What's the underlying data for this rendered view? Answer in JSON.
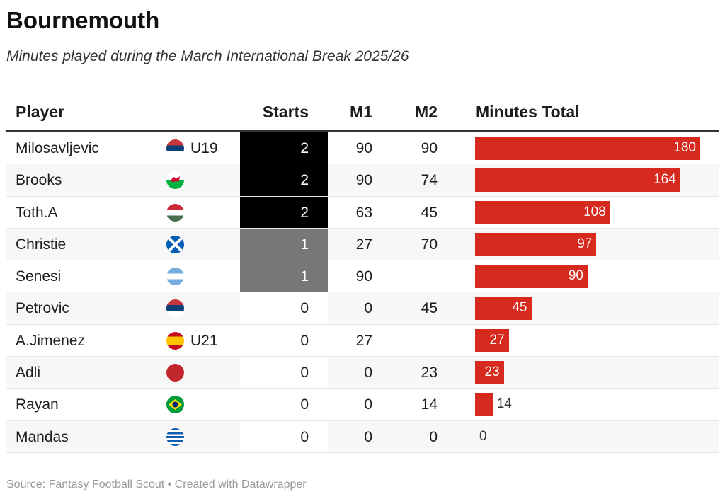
{
  "title": "Bournemouth",
  "subtitle": "Minutes played during the March International Break 2025/26",
  "footer": "Source: Fantasy Football Scout • Created with Datawrapper",
  "colors": {
    "bar": "#d62a1e",
    "starts_2": "#000000",
    "starts_1": "#777777",
    "starts_0": "#ffffff"
  },
  "chart_data": {
    "type": "table",
    "columns": [
      "Player",
      "",
      "Starts",
      "M1",
      "M2",
      "Minutes Total"
    ],
    "rows": [
      {
        "player": "Milosavljevic",
        "flag": "serbia-flag-icon",
        "tag": "U19",
        "starts": "2",
        "m1": "90",
        "m2": "90",
        "total": 180
      },
      {
        "player": "Brooks",
        "flag": "wales-flag-icon",
        "tag": "",
        "starts": "2",
        "m1": "90",
        "m2": "74",
        "total": 164
      },
      {
        "player": "Toth.A",
        "flag": "hungary-flag-icon",
        "tag": "",
        "starts": "2",
        "m1": "63",
        "m2": "45",
        "total": 108
      },
      {
        "player": "Christie",
        "flag": "scotland-flag-icon",
        "tag": "",
        "starts": "1",
        "m1": "27",
        "m2": "70",
        "total": 97
      },
      {
        "player": "Senesi",
        "flag": "argentina-flag-icon",
        "tag": "",
        "starts": "1",
        "m1": "90",
        "m2": "",
        "total": 90
      },
      {
        "player": "Petrovic",
        "flag": "serbia-flag-icon",
        "tag": "",
        "starts": "0",
        "m1": "0",
        "m2": "45",
        "total": 45
      },
      {
        "player": "A.Jimenez",
        "flag": "spain-flag-icon",
        "tag": "U21",
        "starts": "0",
        "m1": "27",
        "m2": "",
        "total": 27
      },
      {
        "player": "Adli",
        "flag": "morocco-flag-icon",
        "tag": "",
        "starts": "0",
        "m1": "0",
        "m2": "23",
        "total": 23
      },
      {
        "player": "Rayan",
        "flag": "brazil-flag-icon",
        "tag": "",
        "starts": "0",
        "m1": "0",
        "m2": "14",
        "total": 14
      },
      {
        "player": "Mandas",
        "flag": "greece-flag-icon",
        "tag": "",
        "starts": "0",
        "m1": "0",
        "m2": "0",
        "total": 0
      }
    ],
    "bar_max": 180
  }
}
